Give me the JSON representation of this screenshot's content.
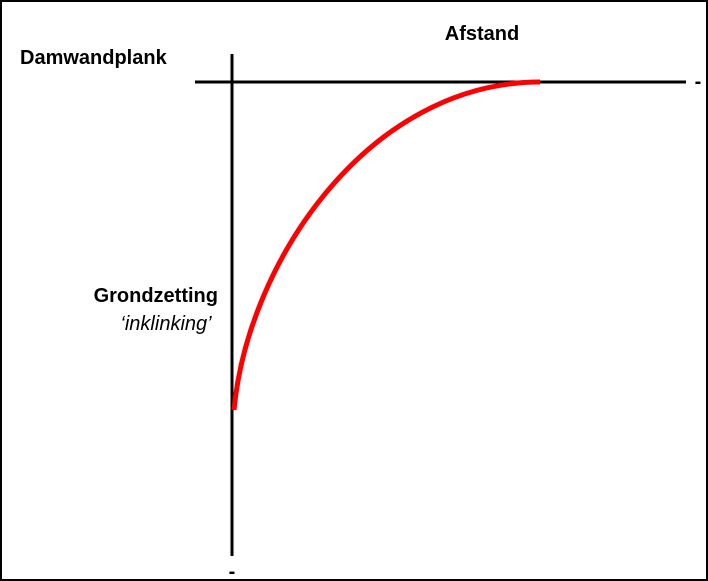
{
  "labels": {
    "y_axis_top": "Damwandplank",
    "x_axis": "Afstand",
    "quantity": "Grondzetting",
    "quantity_note": "‘inklinking’",
    "x_end": "-",
    "y_end": "-"
  }
}
